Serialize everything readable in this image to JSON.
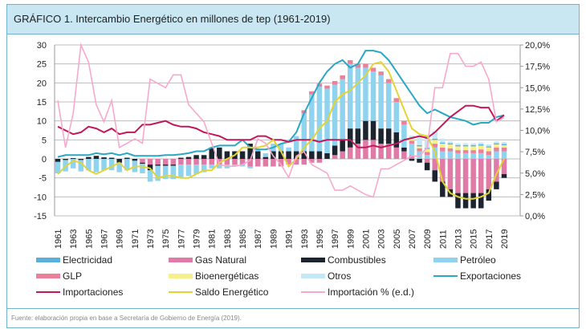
{
  "title": "GRÁFICO 1. Intercambio Energético en millones de tep (1961-2019)",
  "source": "Fuente: elaboración propia en base a Secretaría de Gobierno de Energía (2019).",
  "chart_data": {
    "type": "bar",
    "title": "GRÁFICO 1. Intercambio Energético en millones de tep (1961-2019)",
    "y_left": {
      "min": -15,
      "max": 30,
      "ticks": [
        "30",
        "25",
        "20",
        "15",
        "10",
        "5",
        "0",
        "-5",
        "-10",
        "-15"
      ],
      "tick_values": [
        30,
        25,
        20,
        15,
        10,
        5,
        0,
        -5,
        -10,
        -15
      ]
    },
    "y_right": {
      "min": 0,
      "max": 20,
      "ticks": [
        "20,0%",
        "17,5%",
        "15,0%",
        "12,5%",
        "10,0%",
        "7,5%",
        "5,0%",
        "2,5%",
        "0,0%"
      ],
      "tick_values": [
        20,
        17.5,
        15,
        12.5,
        10,
        7.5,
        5,
        2.5,
        0
      ]
    },
    "x_tick_labels": [
      "1961",
      "1963",
      "1965",
      "1967",
      "1969",
      "1971",
      "1973",
      "1975",
      "1977",
      "1979",
      "1981",
      "1983",
      "1985",
      "1987",
      "1989",
      "1991",
      "1993",
      "1995",
      "1997",
      "1999",
      "2001",
      "2003",
      "2005",
      "2007",
      "2009",
      "2011",
      "2013",
      "2015",
      "2017",
      "2019"
    ],
    "years_start": 1961,
    "years_end": 2019,
    "grid": true,
    "legend_placement": "bottom",
    "colors": {
      "Electricidad": "#5ab0d8",
      "Gas Natural": "#e07aa6",
      "Combustibles": "#1c2430",
      "Petróleo": "#8fd3ef",
      "GLP": "#ec7f9a",
      "Bioenergéticas": "#f7f08a",
      "Otros": "#c4e8f6",
      "Exportaciones": "#2aa7c4",
      "Importaciones": "#c2185b",
      "Saldo Energético": "#e3d334",
      "Importación % (e.d.)": "#f7a9cc"
    },
    "legend": [
      {
        "name": "Electricidad",
        "kind": "bar"
      },
      {
        "name": "Gas Natural",
        "kind": "bar"
      },
      {
        "name": "Combustibles",
        "kind": "bar"
      },
      {
        "name": "Petróleo",
        "kind": "bar"
      },
      {
        "name": "GLP",
        "kind": "bar"
      },
      {
        "name": "Bioenergéticas",
        "kind": "bar"
      },
      {
        "name": "Otros",
        "kind": "bar"
      },
      {
        "name": "Exportaciones",
        "kind": "line"
      },
      {
        "name": "Importaciones",
        "kind": "line"
      },
      {
        "name": "Saldo Energético",
        "kind": "line"
      },
      {
        "name": "Importación % (e.d.)",
        "kind": "line"
      }
    ],
    "bar_series": [
      {
        "name": "Gas Natural",
        "values": [
          0,
          0,
          0,
          0,
          0,
          0,
          0,
          0,
          0,
          0,
          0,
          -1,
          -1.5,
          -1.5,
          -1.5,
          -1.5,
          -1.5,
          -1.5,
          -1.5,
          -1.5,
          -1.5,
          -1.5,
          -1.5,
          -1.5,
          -1.5,
          -2,
          -2,
          -2,
          -2,
          -2,
          -1.5,
          -1.5,
          -1.5,
          -1,
          -1,
          0,
          1,
          2,
          3,
          4,
          5,
          5,
          4,
          4,
          3,
          2,
          1,
          0,
          -1,
          -3,
          -6,
          -8,
          -9,
          -9,
          -9,
          -9,
          -8,
          -6,
          -4
        ]
      },
      {
        "name": "Combustibles",
        "values": [
          -0.8,
          -0.3,
          0.2,
          -0.3,
          0.5,
          0.8,
          0.4,
          0.3,
          -1,
          0.3,
          -0.5,
          -0.3,
          -1.5,
          -0.3,
          -0.3,
          -0.3,
          0.3,
          0.5,
          1,
          1,
          3,
          3,
          2,
          2,
          2,
          4,
          2,
          0.5,
          2,
          2,
          2,
          2,
          2,
          2,
          2,
          1.5,
          2.5,
          3,
          5,
          4,
          5,
          5,
          4,
          4,
          4,
          1,
          -0.5,
          -1,
          -2,
          -3,
          -4,
          -2,
          -4,
          -4,
          -4,
          -4,
          -3,
          -2,
          -1
        ]
      },
      {
        "name": "Petróleo",
        "values": [
          -3,
          -3,
          -2.5,
          -3,
          -3,
          -3.5,
          -3,
          -3,
          -2.5,
          -3,
          -3,
          -2.5,
          -3,
          -4,
          -3.5,
          -3.5,
          -3.5,
          -3,
          -2.5,
          -2,
          -1,
          -1,
          -1,
          -0.5,
          -0.5,
          -0.5,
          0.5,
          1,
          2,
          2,
          1,
          4,
          10,
          15,
          17,
          17,
          16,
          16,
          17,
          16,
          14,
          13,
          14,
          12,
          8,
          6,
          3,
          2,
          1,
          3,
          2,
          2,
          1.5,
          1.5,
          1.5,
          1.5,
          1,
          2,
          2
        ]
      },
      {
        "name": "GLP",
        "values": [
          0,
          0,
          0,
          0,
          0,
          0,
          0,
          0,
          0,
          0,
          0,
          0,
          0,
          0,
          0,
          0,
          0,
          0,
          0,
          0,
          0,
          0,
          0,
          0,
          0,
          0,
          0,
          0,
          0,
          0,
          0,
          0,
          0.8,
          0.8,
          0.8,
          0.8,
          1,
          1,
          1,
          1,
          1,
          1,
          1,
          1,
          1,
          1,
          0.8,
          0.8,
          0.8,
          1,
          1,
          0.8,
          0.8,
          0.8,
          0.8,
          1,
          1,
          1,
          1
        ]
      },
      {
        "name": "Bioenergéticas",
        "values": [
          0,
          0,
          0,
          0,
          0,
          0,
          0,
          0,
          0,
          0,
          0,
          0,
          0,
          0,
          0,
          0,
          0,
          0,
          0,
          0,
          0,
          0,
          0,
          0,
          0,
          0,
          0,
          0,
          0,
          0,
          0,
          0,
          0,
          0,
          0,
          0,
          0,
          0,
          0,
          0,
          0,
          0,
          0,
          0,
          0,
          0,
          0.3,
          0.5,
          0.8,
          1,
          1,
          1,
          1,
          1,
          1,
          1,
          1,
          0.8,
          0.6
        ]
      },
      {
        "name": "Electricidad",
        "values": [
          0,
          0,
          0,
          0,
          0,
          0,
          0,
          0,
          0,
          0,
          0,
          0,
          0,
          0,
          0,
          0,
          0,
          0,
          0,
          0,
          0,
          0,
          0,
          0,
          0,
          0,
          0,
          0,
          0,
          0,
          0,
          0,
          0,
          0,
          0,
          0,
          0,
          0,
          0,
          0,
          0,
          0,
          0,
          0,
          0,
          0,
          0,
          0.3,
          0.3,
          0.3,
          0.3,
          0.3,
          0.3,
          0.3,
          0.3,
          0.3,
          0.3,
          0.3,
          0.3
        ]
      },
      {
        "name": "Otros",
        "values": [
          0,
          0,
          0,
          0,
          0,
          0,
          0,
          0,
          0,
          0,
          0,
          0,
          0,
          0,
          0,
          0,
          0,
          0,
          0,
          0,
          0,
          0,
          0,
          0,
          0,
          0,
          0,
          0,
          0,
          0,
          0,
          0,
          0,
          0,
          0,
          0,
          0,
          0,
          0,
          0,
          0,
          0,
          0,
          0,
          0,
          0,
          1,
          2,
          3,
          2,
          1,
          0.5,
          0.5,
          0.5,
          0.5,
          0.5,
          0.5,
          0.5,
          0.5
        ]
      }
    ],
    "line_series": [
      {
        "name": "Exportaciones",
        "axis": "left",
        "values": [
          0.5,
          1,
          1,
          1,
          1,
          1.5,
          1.2,
          1.5,
          1,
          1.5,
          0.8,
          0.8,
          0.8,
          0.8,
          1,
          1,
          1.2,
          1.5,
          2,
          2,
          3,
          3.5,
          3.5,
          3.5,
          5,
          3,
          2.5,
          2.5,
          3,
          4,
          4.5,
          7,
          12,
          16,
          20,
          23,
          25,
          26,
          24,
          25,
          28.5,
          28.5,
          28,
          26,
          23,
          20,
          17,
          14,
          12,
          13,
          12,
          11,
          10.5,
          10,
          9,
          9.5,
          9.5,
          11,
          11.5
        ]
      },
      {
        "name": "Importaciones",
        "axis": "left",
        "values": [
          8.5,
          7.5,
          6.5,
          7,
          8.5,
          8,
          7,
          8,
          6.5,
          7,
          7,
          9,
          9,
          9.5,
          10,
          9,
          8.5,
          8.5,
          8,
          7,
          6.5,
          6,
          5,
          5,
          5,
          5,
          6,
          6,
          5,
          5,
          4.5,
          5,
          5,
          5,
          4.5,
          5,
          5,
          5,
          5,
          3,
          3,
          3.5,
          3,
          3.5,
          4,
          5,
          5.5,
          6,
          5.5,
          7,
          9,
          11,
          12.5,
          14,
          14,
          13.5,
          13.5,
          10,
          11.5
        ]
      },
      {
        "name": "Saldo Energético",
        "axis": "left",
        "values": [
          -4,
          -2,
          -0.5,
          -1,
          -3,
          -4,
          -3,
          -2,
          -1,
          -3,
          -2,
          -2,
          -2.5,
          -5,
          -4.5,
          -4.5,
          -5,
          -5,
          -4,
          -3,
          -3,
          -1,
          0,
          1,
          3,
          3,
          3,
          3.5,
          5,
          2,
          -2,
          0,
          3,
          5,
          8,
          10,
          15,
          17,
          18,
          20,
          22,
          25,
          25.5,
          23,
          18,
          13,
          8,
          6.5,
          6,
          2,
          -6,
          -9,
          -10,
          -10.5,
          -10.5,
          -10,
          -9,
          -4,
          0
        ]
      },
      {
        "name": "Importación % (e.d.)",
        "axis": "right",
        "values": [
          13.5,
          8,
          12,
          20,
          18,
          13,
          11,
          13.5,
          8,
          8.5,
          9,
          8.5,
          16,
          15.5,
          15,
          16.5,
          16.5,
          13,
          12,
          11,
          8.5,
          6,
          5.8,
          5.8,
          6,
          6.5,
          9,
          8.5,
          7,
          6,
          4.5,
          7,
          7.5,
          6,
          5.5,
          5,
          3,
          3,
          3.5,
          3,
          2.5,
          2.2,
          5.5,
          5.5,
          6,
          6.5,
          7,
          7,
          8,
          15,
          15,
          19,
          19,
          17.5,
          17.5,
          18,
          16,
          11,
          11.5
        ]
      }
    ]
  }
}
